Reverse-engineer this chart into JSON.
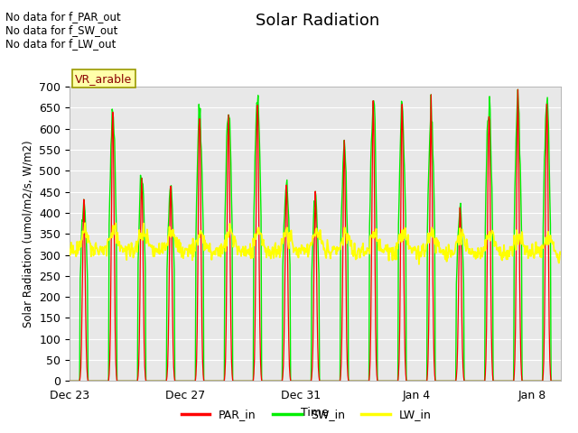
{
  "title": "Solar Radiation",
  "ylabel": "Solar Radiation (umol/m2/s, W/m2)",
  "xlabel": "Time",
  "ylim": [
    0,
    700
  ],
  "yticks": [
    0,
    50,
    100,
    150,
    200,
    250,
    300,
    350,
    400,
    450,
    500,
    550,
    600,
    650,
    700
  ],
  "bg_color": "#e8e8e8",
  "fig_color": "#ffffff",
  "annotations": [
    "No data for f_PAR_out",
    "No data for f_SW_out",
    "No data for f_LW_out"
  ],
  "vr_label": "VR_arable",
  "x_tick_labels": [
    "Dec 23",
    "Dec 27",
    "Dec 31",
    "Jan 4",
    "Jan 8"
  ],
  "x_tick_positions": [
    0,
    4,
    8,
    12,
    16
  ],
  "n_days": 17,
  "par_day_peaks": [
    430,
    640,
    490,
    460,
    640,
    655,
    680,
    480,
    445,
    550,
    660,
    655,
    640,
    410,
    655,
    665,
    665
  ],
  "sw_day_peaks": [
    430,
    640,
    490,
    460,
    640,
    655,
    680,
    480,
    445,
    550,
    660,
    655,
    640,
    410,
    655,
    665,
    665
  ],
  "lw_base": 310,
  "colors": {
    "PAR_in": "#ff0000",
    "SW_in": "#00ee00",
    "LW_in": "#ffff00"
  }
}
